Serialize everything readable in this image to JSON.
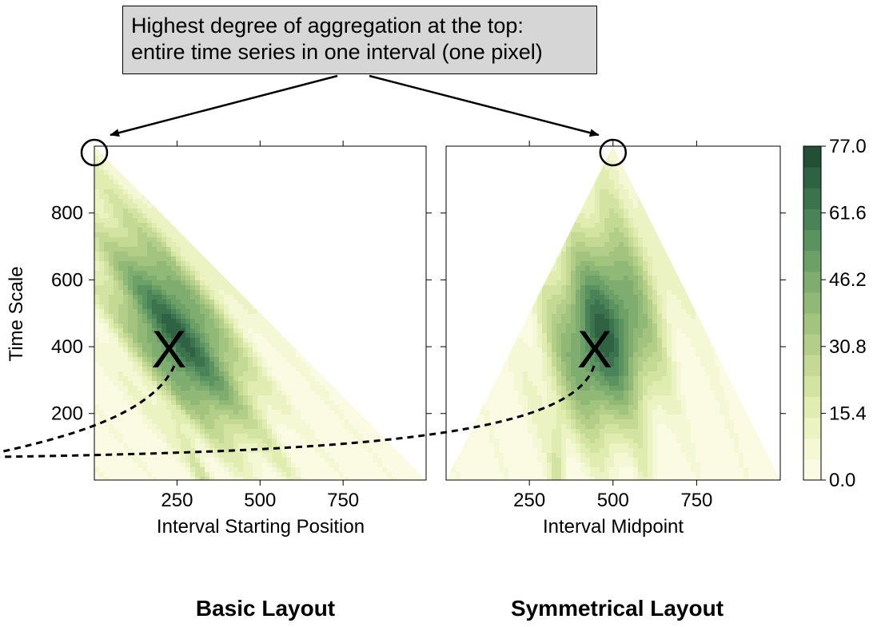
{
  "annotation": {
    "line1": "Highest degree of aggregation at the top:",
    "line2": "entire time series in one interval (one pixel)"
  },
  "colors": {
    "scale": [
      "#fbfbe4",
      "#f5f8d4",
      "#ecf3c2",
      "#e1ecb1",
      "#d3e3a1",
      "#c4d994",
      "#b3ce88",
      "#a2c47f",
      "#90b877",
      "#7ead6f",
      "#6ca067",
      "#5a9260",
      "#498357",
      "#3b734d",
      "#2f6242",
      "#244f37"
    ],
    "marker": "#000000",
    "annotation_bg": "#d6d6d6"
  },
  "chart_data": [
    {
      "type": "heatmap",
      "layout": "basic",
      "title": "Basic Layout",
      "xlabel": "Interval Starting Position",
      "ylabel": "Time Scale",
      "xlim": [
        1,
        1000
      ],
      "ylim": [
        1,
        1000
      ],
      "xticks": [
        250,
        500,
        750
      ],
      "yticks": [
        200,
        400,
        600,
        800
      ],
      "max_marker": {
        "x": 250,
        "y": 400,
        "label": "X"
      },
      "top_marker": {
        "x": 1,
        "y": 1000
      }
    },
    {
      "type": "heatmap",
      "layout": "symmetrical",
      "title": "Symmetrical Layout",
      "xlabel": "Interval Midpoint",
      "xlim": [
        1,
        1000
      ],
      "ylim": [
        1,
        1000
      ],
      "xticks": [
        250,
        500,
        750
      ],
      "yticks": [
        200,
        400,
        600,
        800
      ],
      "max_marker": {
        "x": 450,
        "y": 400,
        "label": "X"
      },
      "top_marker": {
        "x": 500,
        "y": 1000
      }
    }
  ],
  "colorbar": {
    "min": 0.0,
    "max": 77.0,
    "levels": 16,
    "tick_labels": [
      "0.0",
      "15.4",
      "30.8",
      "46.2",
      "61.6",
      "77.0"
    ]
  }
}
